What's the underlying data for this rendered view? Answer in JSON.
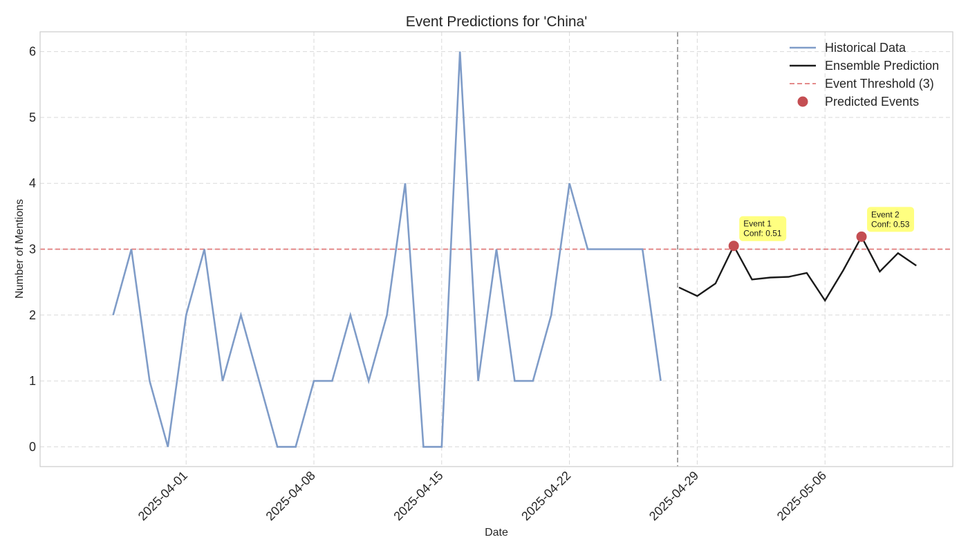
{
  "chart_data": {
    "type": "line",
    "title": "Event Predictions for 'China'",
    "xlabel": "Date",
    "ylabel": "Number of Mentions",
    "x_range": [
      "2025-03-24",
      "2025-05-13"
    ],
    "ylim": [
      -0.3,
      6.3
    ],
    "grid": true,
    "legend_position": "top-right",
    "x_ticks": [
      "2025-04-01",
      "2025-04-08",
      "2025-04-15",
      "2025-04-22",
      "2025-04-29",
      "2025-05-06"
    ],
    "y_ticks": [
      "0",
      "1",
      "2",
      "3",
      "4",
      "5",
      "6"
    ],
    "forecast_start": "2025-04-28",
    "threshold": 3,
    "series": [
      {
        "name": "Historical Data",
        "color": "#7f9cc8",
        "x": [
          "2025-03-28",
          "2025-03-29",
          "2025-03-30",
          "2025-03-31",
          "2025-04-01",
          "2025-04-02",
          "2025-04-03",
          "2025-04-04",
          "2025-04-05",
          "2025-04-06",
          "2025-04-07",
          "2025-04-08",
          "2025-04-09",
          "2025-04-10",
          "2025-04-11",
          "2025-04-12",
          "2025-04-13",
          "2025-04-14",
          "2025-04-15",
          "2025-04-16",
          "2025-04-17",
          "2025-04-18",
          "2025-04-19",
          "2025-04-20",
          "2025-04-21",
          "2025-04-22",
          "2025-04-23",
          "2025-04-24",
          "2025-04-25",
          "2025-04-26",
          "2025-04-27"
        ],
        "y": [
          2,
          3,
          1,
          0,
          2,
          3,
          1,
          2,
          1,
          0,
          0,
          1,
          1,
          2,
          1,
          2,
          4,
          0,
          0,
          6,
          1,
          3,
          1,
          1,
          2,
          4,
          3,
          3,
          3,
          3,
          1
        ]
      },
      {
        "name": "Ensemble Prediction",
        "color": "#1a1a1a",
        "x": [
          "2025-04-28",
          "2025-04-29",
          "2025-04-30",
          "2025-05-01",
          "2025-05-02",
          "2025-05-03",
          "2025-05-04",
          "2025-05-05",
          "2025-05-06",
          "2025-05-07",
          "2025-05-08",
          "2025-05-09",
          "2025-05-10",
          "2025-05-11",
          "2025-05-12"
        ],
        "y": [
          2.42,
          2.29,
          2.48,
          3.05,
          2.54,
          2.57,
          2.58,
          2.64,
          2.22,
          2.68,
          3.19,
          2.66,
          2.94,
          2.75,
          null
        ]
      }
    ],
    "threshold_line": {
      "name": "Event Threshold (3)",
      "color": "#e07a7a"
    },
    "events": {
      "name": "Predicted Events",
      "color": "#c44e52",
      "points": [
        {
          "x": "2025-05-01",
          "y": 3.05,
          "label_line1": "Event 1",
          "label_line2": "Conf: 0.51"
        },
        {
          "x": "2025-05-08",
          "y": 3.19,
          "label_line1": "Event 2",
          "label_line2": "Conf: 0.53"
        }
      ]
    }
  }
}
